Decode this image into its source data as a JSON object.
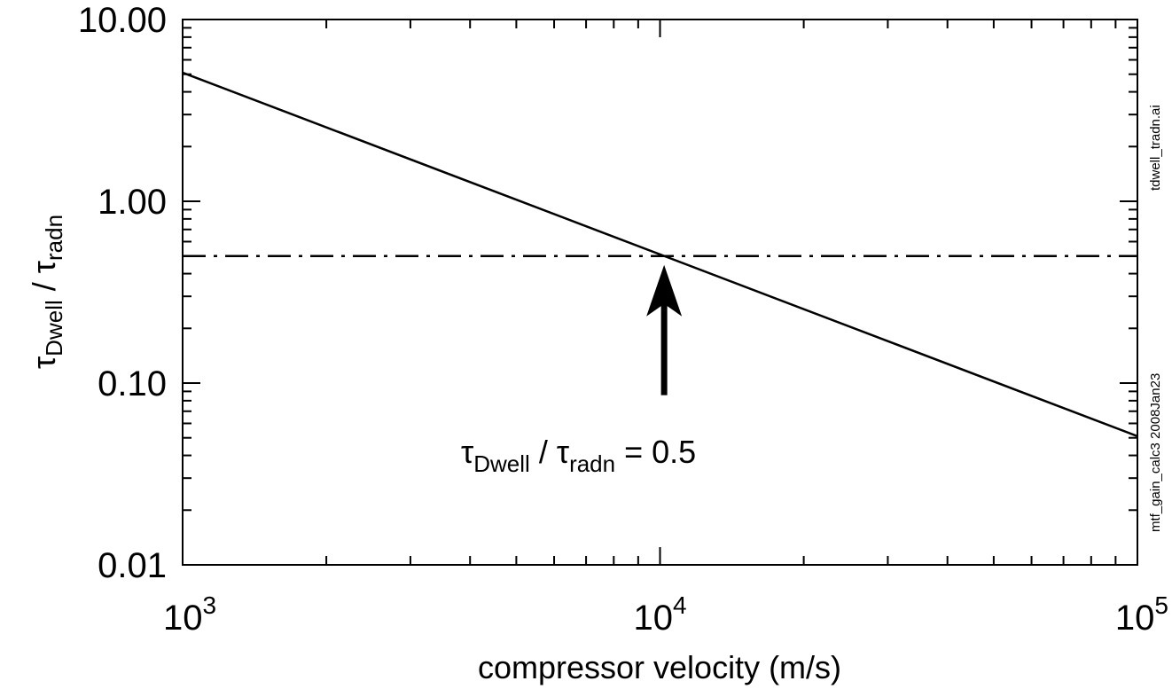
{
  "chart_data": {
    "type": "line",
    "xscale": "log",
    "yscale": "log",
    "xlim": [
      1000,
      100000
    ],
    "ylim": [
      0.01,
      10
    ],
    "xlabel": "compressor velocity (m/s)",
    "ylabel": {
      "symbol": "τ",
      "sub1": "Dwell",
      "sep": " / ",
      "sub2": "radn"
    },
    "x_ticks": [
      {
        "value": 1000,
        "base": "10",
        "exp": "3"
      },
      {
        "value": 10000,
        "base": "10",
        "exp": "4"
      },
      {
        "value": 100000,
        "base": "10",
        "exp": "5"
      }
    ],
    "y_ticks": [
      {
        "value": 10,
        "label": "10.00"
      },
      {
        "value": 1,
        "label": "1.00"
      },
      {
        "value": 0.1,
        "label": "0.10"
      },
      {
        "value": 0.01,
        "label": "0.01"
      }
    ],
    "grid": false,
    "series": [
      {
        "style": "solid",
        "color": "#000000",
        "x": [
          1000,
          100000
        ],
        "y": [
          5.1,
          0.051
        ]
      },
      {
        "style": "dash-dot",
        "color": "#000000",
        "x": [
          1000,
          100000
        ],
        "y": [
          0.5,
          0.5
        ]
      }
    ],
    "annotation": {
      "symbol": "τ",
      "sub1": "Dwell",
      "sep": " / ",
      "sub2": "radn",
      "suffix": " = 0.5",
      "arrow_x": 10200,
      "arrow_y_tip": 0.5,
      "arrow_y_tail": 0.075
    },
    "side_labels": {
      "top": "tdwell_tradn.ai",
      "bottom": "mtf_gain_calc3  2008Jan23"
    }
  }
}
